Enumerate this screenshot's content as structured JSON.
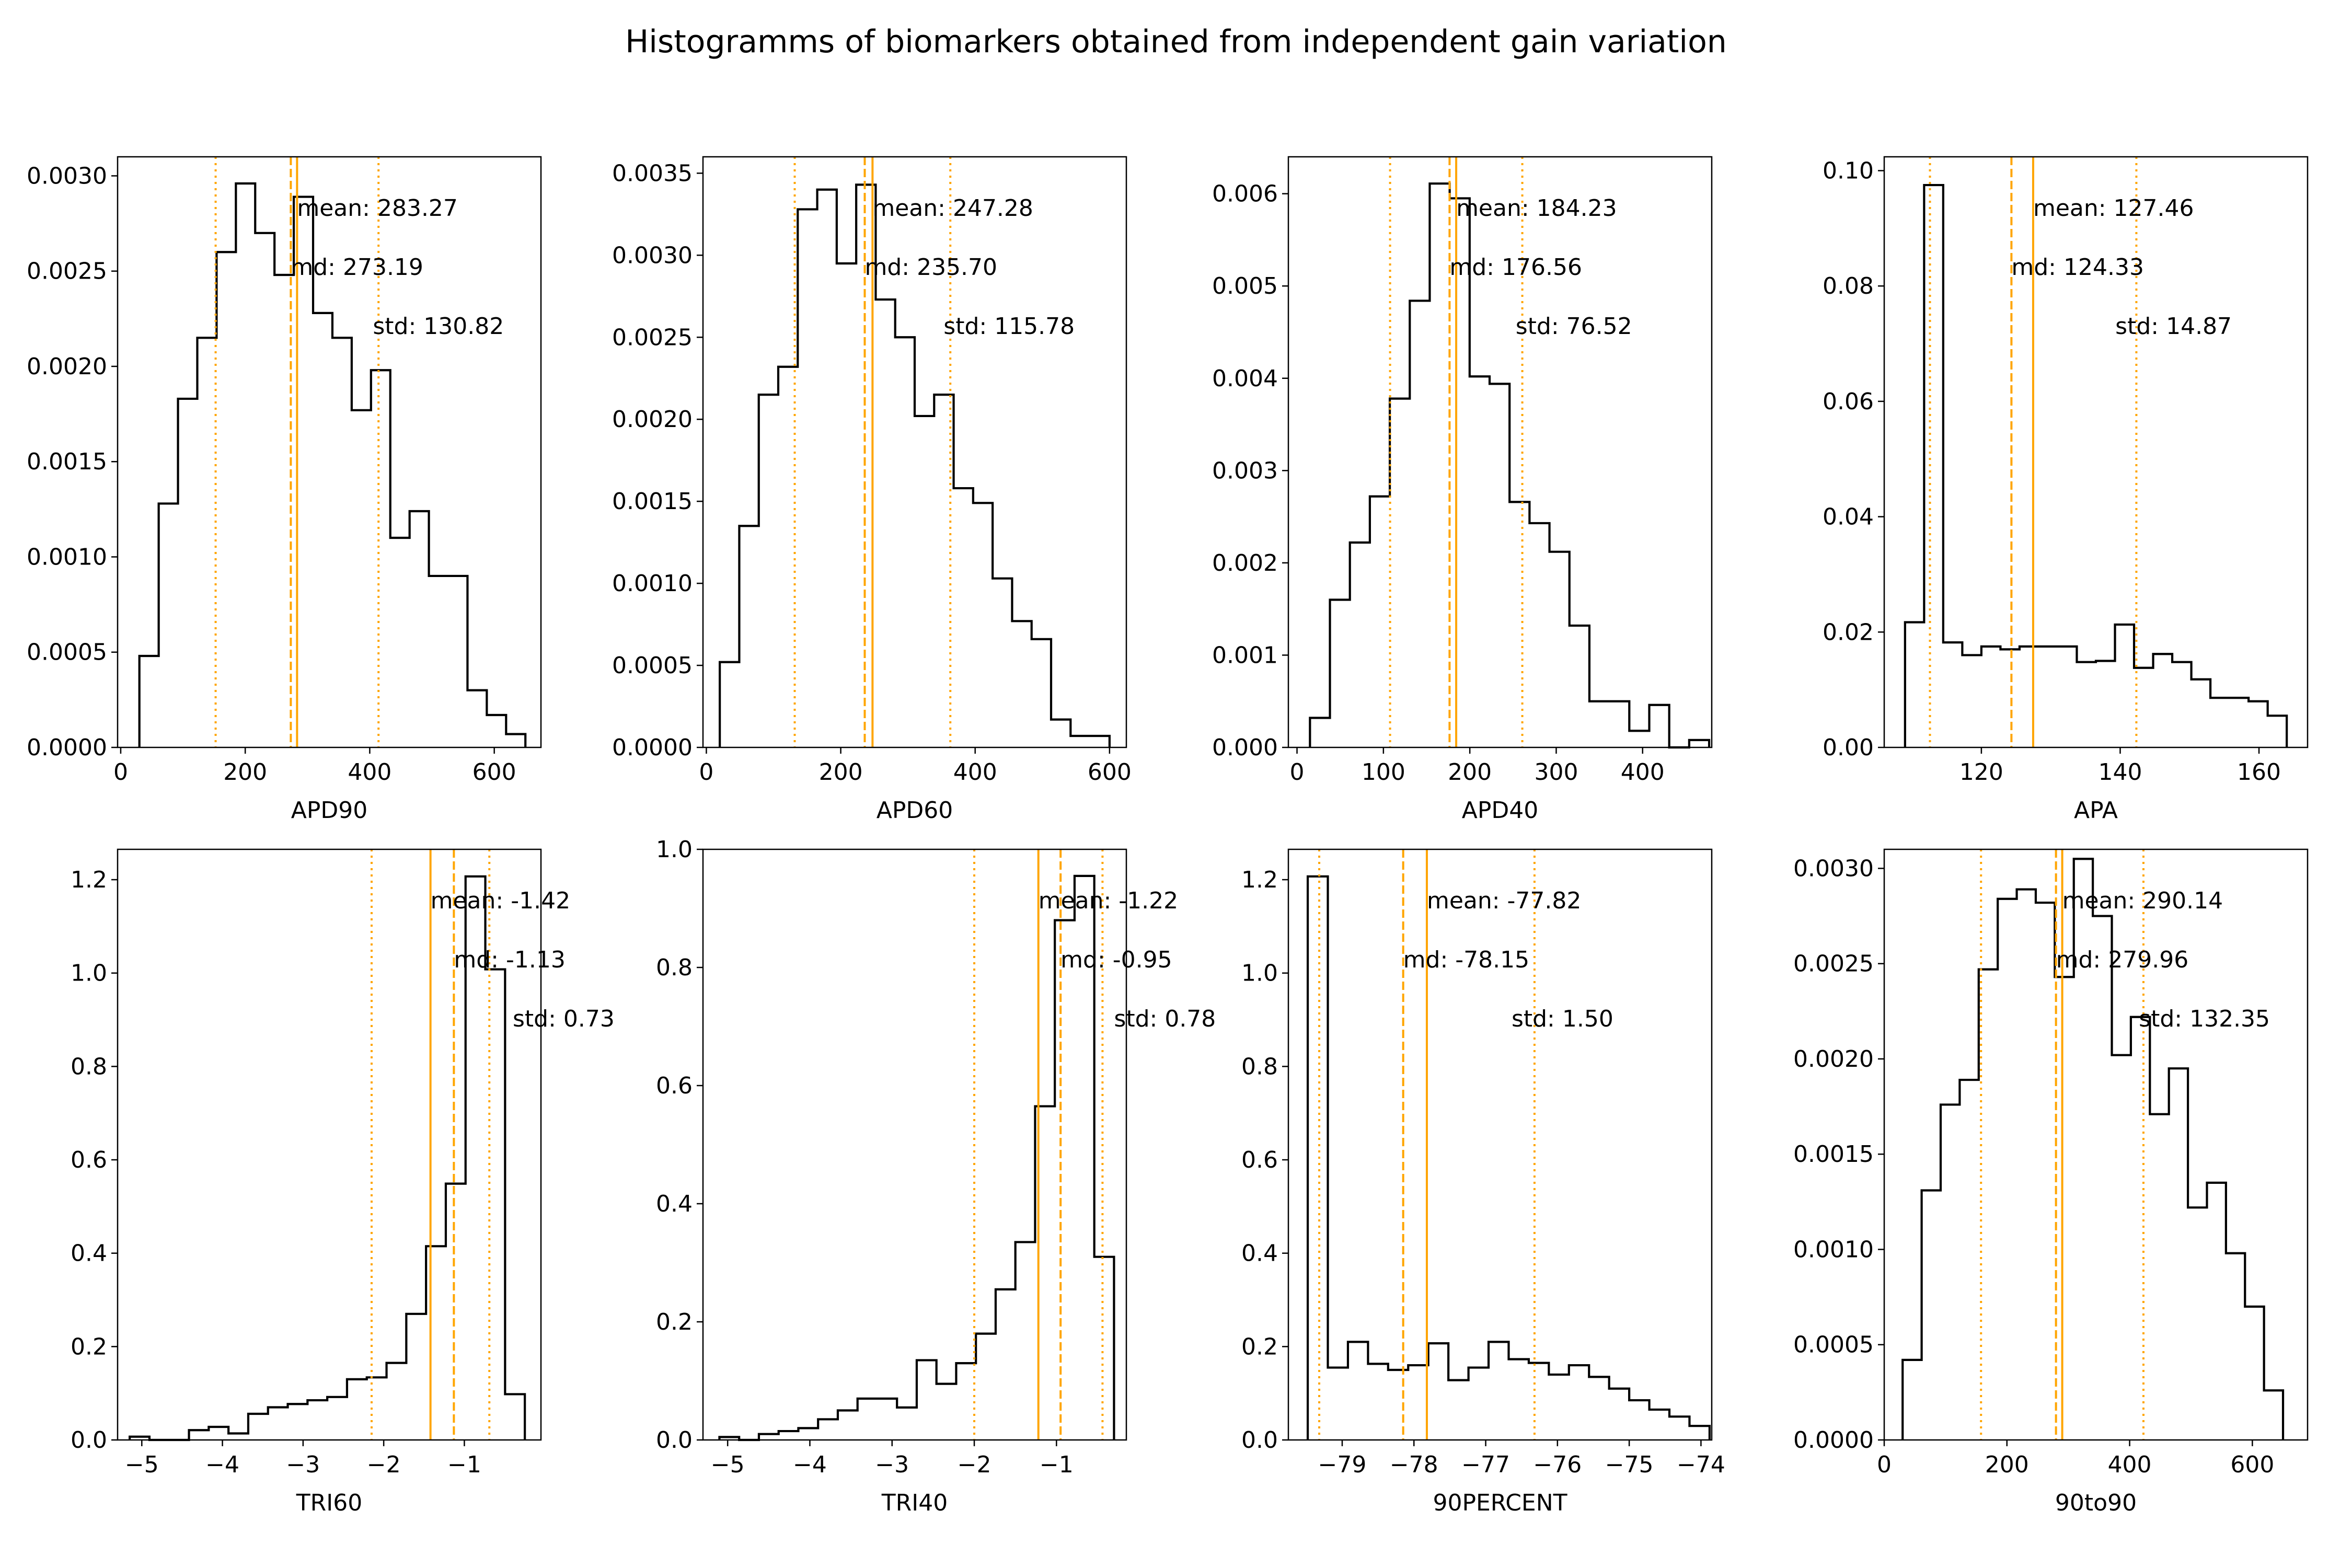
{
  "title": "Histogramms of biomarkers obtained from independent gain variation",
  "colors": {
    "histogram": "#000000",
    "markers": "#ffa500",
    "background": "#ffffff"
  },
  "chart_data": [
    {
      "type": "histogram",
      "xlabel": "APD90",
      "xlim": [
        -5,
        675
      ],
      "ylim": [
        0,
        0.0031
      ],
      "xticks": [
        0,
        200,
        400,
        600
      ],
      "xtick_labels": [
        "0",
        "200",
        "400",
        "600"
      ],
      "yticks": [
        0,
        0.0005,
        0.001,
        0.0015,
        0.002,
        0.0025,
        0.003
      ],
      "ytick_labels": [
        "0.0000",
        "0.0005",
        "0.0010",
        "0.0015",
        "0.0020",
        "0.0025",
        "0.0030"
      ],
      "bin_edges": [
        30,
        61,
        92,
        123,
        154,
        185,
        216,
        247,
        278,
        309,
        340,
        371,
        402,
        433,
        464,
        495,
        526,
        557,
        588,
        619,
        650
      ],
      "density": [
        0.00048,
        0.00128,
        0.00183,
        0.00215,
        0.0026,
        0.00296,
        0.0027,
        0.00248,
        0.00289,
        0.00228,
        0.00215,
        0.00177,
        0.00198,
        0.0011,
        0.00124,
        0.0009,
        0.0009,
        0.0003,
        0.00017,
        7e-05
      ],
      "mean": 283.27,
      "median": 273.19,
      "std": 130.82,
      "mean_label": "mean: 283.27",
      "median_label": "md: 273.19",
      "std_label": "std: 130.82",
      "label_x": [
        283.27,
        273.19,
        405
      ]
    },
    {
      "type": "histogram",
      "xlabel": "APD60",
      "xlim": [
        -5,
        625
      ],
      "ylim": [
        0,
        0.0036
      ],
      "xticks": [
        0,
        200,
        400,
        600
      ],
      "xtick_labels": [
        "0",
        "200",
        "400",
        "600"
      ],
      "yticks": [
        0,
        0.0005,
        0.001,
        0.0015,
        0.002,
        0.0025,
        0.003,
        0.0035
      ],
      "ytick_labels": [
        "0.0000",
        "0.0005",
        "0.0010",
        "0.0015",
        "0.0020",
        "0.0025",
        "0.0030",
        "0.0035"
      ],
      "bin_edges": [
        20,
        49,
        78,
        107,
        136,
        165,
        194,
        223,
        252,
        281,
        310,
        339,
        368,
        397,
        426,
        455,
        484,
        513,
        542,
        571,
        600
      ],
      "density": [
        0.00052,
        0.00135,
        0.00215,
        0.00232,
        0.00328,
        0.0034,
        0.00295,
        0.00343,
        0.00273,
        0.0025,
        0.00202,
        0.00215,
        0.00158,
        0.00149,
        0.00103,
        0.00077,
        0.00066,
        0.00017,
        7e-05,
        7e-05
      ],
      "mean": 247.28,
      "median": 235.7,
      "std": 115.78,
      "mean_label": "mean: 247.28",
      "median_label": "md: 235.70",
      "std_label": "std: 115.78",
      "label_x": [
        247.28,
        235.7,
        353
      ]
    },
    {
      "type": "histogram",
      "xlabel": "APD40",
      "xlim": [
        -10,
        480
      ],
      "ylim": [
        0,
        0.0064
      ],
      "xticks": [
        0,
        100,
        200,
        300,
        400
      ],
      "xtick_labels": [
        "0",
        "100",
        "200",
        "300",
        "400"
      ],
      "yticks": [
        0,
        0.001,
        0.002,
        0.003,
        0.004,
        0.005,
        0.006
      ],
      "ytick_labels": [
        "0.000",
        "0.001",
        "0.002",
        "0.003",
        "0.004",
        "0.005",
        "0.006"
      ],
      "bin_edges": [
        15,
        38.1,
        61.2,
        84.3,
        107.4,
        130.5,
        153.6,
        176.7,
        199.8,
        222.9,
        246,
        269.1,
        292.2,
        315.3,
        338.4,
        361.5,
        384.6,
        407.7,
        430.8,
        453.9,
        477
      ],
      "density": [
        0.00032,
        0.0016,
        0.00222,
        0.00272,
        0.00378,
        0.00484,
        0.00611,
        0.00595,
        0.00402,
        0.00394,
        0.00266,
        0.00243,
        0.00212,
        0.00132,
        0.0005,
        0.0005,
        0.00018,
        0.00046,
        0.0,
        8e-05
      ],
      "mean": 184.23,
      "median": 176.56,
      "std": 76.52,
      "mean_label": "mean: 184.23",
      "median_label": "md: 176.56",
      "std_label": "std: 76.52",
      "label_x": [
        184.23,
        176.56,
        253
      ]
    },
    {
      "type": "histogram",
      "xlabel": "APA",
      "xlim": [
        106,
        167
      ],
      "ylim": [
        0,
        0.1024
      ],
      "xticks": [
        120,
        140,
        160
      ],
      "xtick_labels": [
        "120",
        "140",
        "160"
      ],
      "yticks": [
        0,
        0.02,
        0.04,
        0.06,
        0.08,
        0.1
      ],
      "ytick_labels": [
        "0.00",
        "0.02",
        "0.04",
        "0.06",
        "0.08",
        "0.10"
      ],
      "bin_edges": [
        109,
        111.75,
        114.5,
        117.25,
        120,
        122.75,
        125.5,
        128.25,
        131,
        133.75,
        136.5,
        139.25,
        142,
        144.75,
        147.5,
        150.25,
        153,
        155.75,
        158.5,
        161.25,
        164
      ],
      "density": [
        0.0217,
        0.0975,
        0.0182,
        0.016,
        0.0175,
        0.017,
        0.0175,
        0.0175,
        0.0175,
        0.0148,
        0.015,
        0.0213,
        0.0138,
        0.0162,
        0.0148,
        0.0118,
        0.0086,
        0.0086,
        0.008,
        0.0055
      ],
      "mean": 127.46,
      "median": 124.33,
      "std": 14.87,
      "mean_label": "mean: 127.46",
      "median_label": "md: 124.33",
      "std_label": "std: 14.87",
      "label_x": [
        127.46,
        124.33,
        139.3
      ]
    },
    {
      "type": "histogram",
      "xlabel": "TRI60",
      "xlim": [
        -5.3,
        -0.05
      ],
      "ylim": [
        0,
        1.265
      ],
      "xticks": [
        -5,
        -4,
        -3,
        -2,
        -1
      ],
      "xtick_labels": [
        "−5",
        "−4",
        "−3",
        "−2",
        "−1"
      ],
      "yticks": [
        0,
        0.2,
        0.4,
        0.6,
        0.8,
        1.0,
        1.2
      ],
      "ytick_labels": [
        "0.0",
        "0.2",
        "0.4",
        "0.6",
        "0.8",
        "1.0",
        "1.2"
      ],
      "bin_edges": [
        -5.15,
        -4.905,
        -4.66,
        -4.415,
        -4.17,
        -3.925,
        -3.68,
        -3.435,
        -3.19,
        -2.945,
        -2.7,
        -2.455,
        -2.21,
        -1.965,
        -1.72,
        -1.475,
        -1.23,
        -0.985,
        -0.74,
        -0.495,
        -0.25
      ],
      "density": [
        0.007,
        0.0,
        0.0,
        0.021,
        0.028,
        0.014,
        0.056,
        0.07,
        0.077,
        0.085,
        0.092,
        0.13,
        0.134,
        0.165,
        0.27,
        0.415,
        0.549,
        1.207,
        1.008,
        0.098
      ],
      "mean": -1.42,
      "median": -1.13,
      "std": 0.73,
      "mean_label": "mean: -1.42",
      "median_label": "md: -1.13",
      "std_label": "std: 0.73",
      "label_x": [
        -1.42,
        -1.13,
        -0.4
      ]
    },
    {
      "type": "histogram",
      "xlabel": "TRI40",
      "xlim": [
        -5.3,
        -0.15
      ],
      "ylim": [
        0,
        1.0
      ],
      "xticks": [
        -5,
        -4,
        -3,
        -2,
        -1
      ],
      "xtick_labels": [
        "−5",
        "−4",
        "−3",
        "−2",
        "−1"
      ],
      "yticks": [
        0,
        0.2,
        0.4,
        0.6,
        0.8,
        1.0
      ],
      "ytick_labels": [
        "0.0",
        "0.2",
        "0.4",
        "0.6",
        "0.8",
        "1.0"
      ],
      "bin_edges": [
        -5.1,
        -4.86,
        -4.62,
        -4.38,
        -4.14,
        -3.9,
        -3.66,
        -3.42,
        -3.18,
        -2.94,
        -2.7,
        -2.46,
        -2.22,
        -1.98,
        -1.74,
        -1.5,
        -1.26,
        -1.02,
        -0.78,
        -0.54,
        -0.3
      ],
      "density": [
        0.005,
        0.0,
        0.01,
        0.015,
        0.02,
        0.035,
        0.05,
        0.07,
        0.07,
        0.055,
        0.135,
        0.095,
        0.13,
        0.18,
        0.255,
        0.335,
        0.565,
        0.88,
        0.955,
        0.31
      ],
      "mean": -1.22,
      "median": -0.95,
      "std": 0.78,
      "mean_label": "mean: -1.22",
      "median_label": "md: -0.95",
      "std_label": "std: 0.78",
      "label_x": [
        -1.22,
        -0.95,
        -0.3
      ]
    },
    {
      "type": "histogram",
      "xlabel": "90PERCENT",
      "xlim": [
        -79.75,
        -73.85
      ],
      "ylim": [
        0,
        1.265
      ],
      "xticks": [
        -79,
        -78,
        -77,
        -76,
        -75,
        -74
      ],
      "xtick_labels": [
        "−79",
        "−78",
        "−77",
        "−76",
        "−75",
        "−74"
      ],
      "yticks": [
        0,
        0.2,
        0.4,
        0.6,
        0.8,
        1.0,
        1.2
      ],
      "ytick_labels": [
        "0.0",
        "0.2",
        "0.4",
        "0.6",
        "0.8",
        "1.0",
        "1.2"
      ],
      "bin_edges": [
        -79.48,
        -79.2,
        -78.92,
        -78.64,
        -78.36,
        -78.08,
        -77.8,
        -77.52,
        -77.24,
        -76.96,
        -76.68,
        -76.4,
        -76.12,
        -75.84,
        -75.56,
        -75.28,
        -75.0,
        -74.72,
        -74.44,
        -74.16,
        -73.88
      ],
      "density": [
        1.207,
        0.155,
        0.21,
        0.163,
        0.15,
        0.16,
        0.207,
        0.128,
        0.155,
        0.21,
        0.173,
        0.165,
        0.14,
        0.16,
        0.135,
        0.11,
        0.085,
        0.065,
        0.05,
        0.03
      ],
      "mean": -77.82,
      "median": -78.15,
      "std": 1.5,
      "mean_label": "mean: -77.82",
      "median_label": "md: -78.15",
      "std_label": "std: 1.50",
      "label_x": [
        -77.82,
        -78.15,
        -76.64
      ]
    },
    {
      "type": "histogram",
      "xlabel": "90to90",
      "xlim": [
        0,
        690
      ],
      "ylim": [
        0,
        0.0031
      ],
      "xticks": [
        0,
        200,
        400,
        600
      ],
      "xtick_labels": [
        "0",
        "200",
        "400",
        "600"
      ],
      "yticks": [
        0,
        0.0005,
        0.001,
        0.0015,
        0.002,
        0.0025,
        0.003
      ],
      "ytick_labels": [
        "0.0000",
        "0.0005",
        "0.0010",
        "0.0015",
        "0.0020",
        "0.0025",
        "0.0030"
      ],
      "bin_edges": [
        30,
        61,
        92,
        123,
        154,
        185,
        216,
        247,
        278,
        309,
        340,
        371,
        402,
        433,
        464,
        495,
        526,
        557,
        588,
        619,
        650
      ],
      "density": [
        0.00042,
        0.00131,
        0.00176,
        0.00189,
        0.00247,
        0.00284,
        0.00289,
        0.00282,
        0.00243,
        0.00305,
        0.00275,
        0.00202,
        0.00222,
        0.00171,
        0.00195,
        0.00122,
        0.00135,
        0.00098,
        0.0007,
        0.00026
      ],
      "mean": 290.14,
      "median": 279.96,
      "std": 132.35,
      "mean_label": "mean: 290.14",
      "median_label": "md: 279.96",
      "std_label": "std: 132.35",
      "label_x": [
        290.14,
        279.96,
        415
      ]
    }
  ]
}
